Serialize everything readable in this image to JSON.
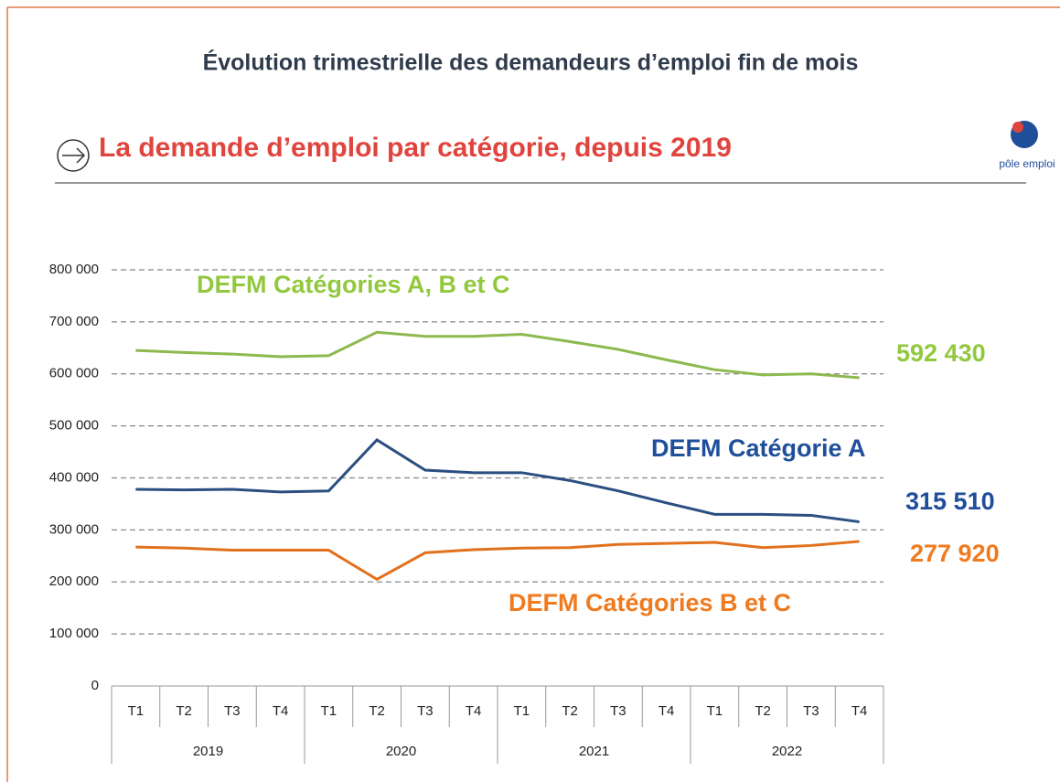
{
  "header": {
    "title": "Évolution trimestrielle des demandeurs d’emploi fin de mois",
    "subtitle": "La demande d’emploi par catégorie, depuis 2019",
    "logo": "pôle emploi"
  },
  "chart_data": {
    "type": "line",
    "categories": [
      "T1",
      "T2",
      "T3",
      "T4",
      "T1",
      "T2",
      "T3",
      "T4",
      "T1",
      "T2",
      "T3",
      "T4",
      "T1",
      "T2",
      "T3",
      "T4"
    ],
    "groups": [
      "2019",
      "2020",
      "2021",
      "2022"
    ],
    "series": [
      {
        "name": "DEFM Catégories A, B et C",
        "color": "#8db94f",
        "label_color": "#92c83e",
        "values": [
          645000,
          641000,
          638000,
          633000,
          635000,
          680000,
          672000,
          672000,
          676000,
          662000,
          647000,
          627000,
          608000,
          598000,
          600000,
          592430
        ],
        "end_label": "592 430"
      },
      {
        "name": "DEFM Catégorie A",
        "color": "#2a4f80",
        "label_color": "#1f4e9a",
        "values": [
          378000,
          377000,
          378000,
          373000,
          375000,
          473000,
          415000,
          410000,
          410000,
          395000,
          375000,
          352000,
          330000,
          330000,
          328000,
          315510
        ],
        "end_label": "315 510"
      },
      {
        "name": "DEFM Catégories B et C",
        "color": "#e2711d",
        "label_color": "#f07a1e",
        "values": [
          267000,
          265000,
          261000,
          261000,
          261000,
          205000,
          256000,
          262000,
          265000,
          266000,
          272000,
          274000,
          276000,
          266000,
          270000,
          277920
        ],
        "end_label": "277 920"
      }
    ],
    "ylim": [
      0,
      800000
    ],
    "yticks": [
      0,
      {
        "value": 100000,
        "label": "100 000"
      },
      {
        "value": 200000,
        "label": "200 000"
      },
      {
        "value": 300000,
        "label": "300 000"
      },
      {
        "value": 400000,
        "label": "400 000"
      },
      {
        "value": 500000,
        "label": "500 000"
      },
      {
        "value": 600000,
        "label": "600 000"
      },
      {
        "value": 700000,
        "label": "700 000"
      },
      {
        "value": 800000,
        "label": "800 000"
      }
    ],
    "grid": true
  }
}
